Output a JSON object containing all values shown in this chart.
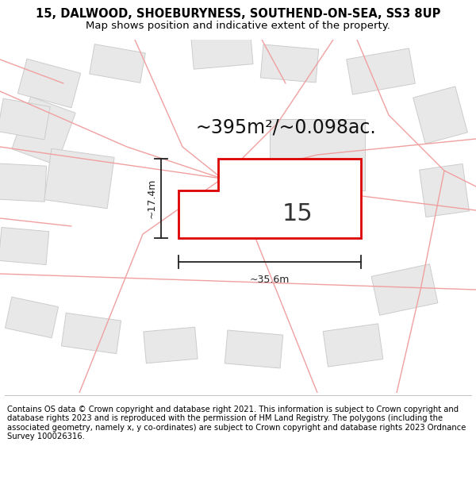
{
  "title_line1": "15, DALWOOD, SHOEBURYNESS, SOUTHEND-ON-SEA, SS3 8UP",
  "title_line2": "Map shows position and indicative extent of the property.",
  "area_text": "~395m²/~0.098ac.",
  "property_number": "15",
  "width_label": "~35.6m",
  "height_label": "~17.4m",
  "footer_text": "Contains OS data © Crown copyright and database right 2021. This information is subject to Crown copyright and database rights 2023 and is reproduced with the permission of HM Land Registry. The polygons (including the associated geometry, namely x, y co-ordinates) are subject to Crown copyright and database rights 2023 Ordnance Survey 100026316.",
  "map_bg": "#ffffff",
  "neighbor_fill": "#e8e8e8",
  "neighbor_edge": "#cccccc",
  "road_color": "#f0a0a0",
  "property_color": "#dd0000",
  "title_fontsize": 10.5,
  "subtitle_fontsize": 9.5,
  "footer_fontsize": 7.2,
  "area_fontsize": 17,
  "number_fontsize": 22,
  "dim_fontsize": 9
}
